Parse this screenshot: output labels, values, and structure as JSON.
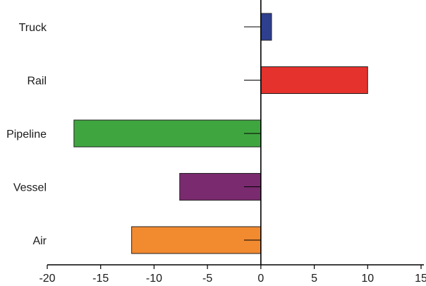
{
  "chart_data": {
    "type": "bar",
    "orientation": "horizontal",
    "categories": [
      "Truck",
      "Rail",
      "Pipeline",
      "Vessel",
      "Air"
    ],
    "values": [
      1,
      10,
      -17.5,
      -7.6,
      -12.1
    ],
    "colors": [
      "#2e3f8f",
      "#e5322d",
      "#3fa63f",
      "#7a2a6e",
      "#f28a30"
    ],
    "title": "",
    "xlabel": "",
    "ylabel": "",
    "xlim": [
      -20,
      15
    ],
    "xticks": [
      -20,
      -15,
      -10,
      -5,
      0,
      5,
      10,
      15
    ],
    "xtick_labels": [
      "-20",
      "-15",
      "-10",
      "-5",
      "0",
      "5",
      "10",
      "15"
    ],
    "grid": false,
    "legend": "none"
  }
}
